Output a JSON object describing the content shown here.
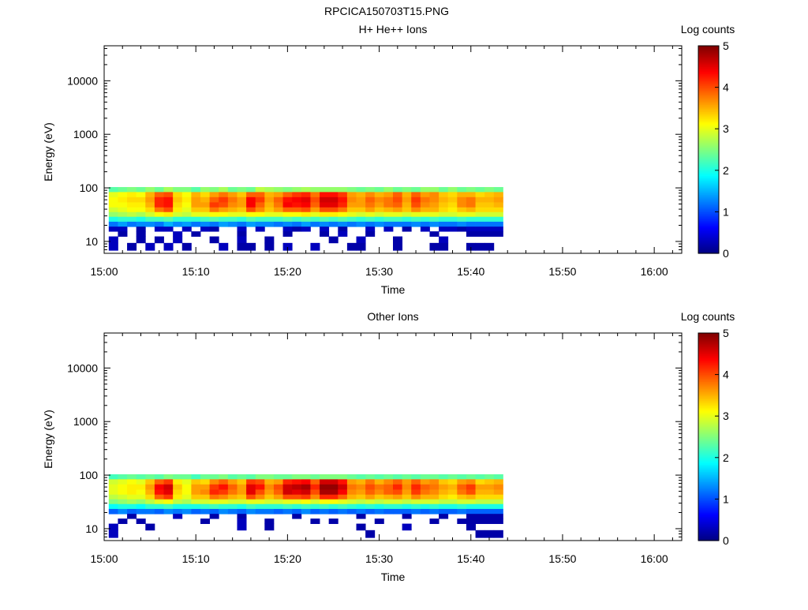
{
  "figure_title": "RPCICA150703T15.PNG",
  "colorbar_ticks": [
    "0",
    "1",
    "2",
    "3",
    "4",
    "5"
  ],
  "chart_data": [
    {
      "type": "heatmap",
      "title": "H+ He++ Ions",
      "xlabel": "Time",
      "ylabel": "Energy (eV)",
      "colorbar_label": "Log counts",
      "colorbar_range": [
        0,
        5
      ],
      "xlim": [
        "15:00",
        "16:03"
      ],
      "x_ticks": [
        "15:00",
        "15:10",
        "15:20",
        "15:30",
        "15:40",
        "15:50",
        "16:00"
      ],
      "ylim": [
        6,
        45000
      ],
      "y_scale": "log",
      "y_ticks": [
        {
          "value": 10,
          "label": "10"
        },
        {
          "value": 100,
          "label": "100"
        },
        {
          "value": 1000,
          "label": "1000"
        },
        {
          "value": 10000,
          "label": "10000"
        }
      ],
      "energy_bins_eV": [
        93,
        75,
        60,
        48,
        39,
        32,
        26,
        21,
        17,
        14,
        11,
        8
      ],
      "time_bins": [
        "15:01",
        "15:02",
        "15:03",
        "15:04",
        "15:05",
        "15:06",
        "15:07",
        "15:08",
        "15:09",
        "15:10",
        "15:11",
        "15:12",
        "15:13",
        "15:14",
        "15:15",
        "15:16",
        "15:17",
        "15:18",
        "15:19",
        "15:20",
        "15:21",
        "15:22",
        "15:23",
        "15:24",
        "15:25",
        "15:26",
        "15:27",
        "15:28",
        "15:29",
        "15:30",
        "15:31",
        "15:32",
        "15:33",
        "15:34",
        "15:35",
        "15:36",
        "15:37",
        "15:38",
        "15:39",
        "15:40",
        "15:41",
        "15:42",
        "15:43"
      ],
      "log_counts": [
        [
          2.3,
          2.4,
          2.5,
          2.4,
          2.6,
          2.4,
          2.7,
          2.5,
          2.5,
          2.3,
          2.6,
          2.5,
          2.7,
          2.4,
          2.5,
          2.4,
          2.8,
          2.7,
          2.6,
          2.5,
          2.6,
          2.7,
          2.6,
          2.6,
          2.6,
          2.6,
          2.5,
          2.4,
          2.5,
          2.4,
          2.6,
          2.4,
          2.5,
          2.4,
          2.6,
          2.6,
          2.4,
          2.6,
          2.4,
          2.5,
          2.4,
          2.5,
          2.4
        ],
        [
          3.0,
          3.1,
          3.2,
          3.1,
          3.5,
          3.9,
          4.0,
          3.3,
          3.1,
          3.5,
          3.3,
          3.6,
          3.8,
          3.6,
          3.4,
          3.9,
          3.9,
          3.5,
          3.6,
          3.9,
          4.1,
          4.2,
          3.8,
          4.3,
          4.3,
          4.1,
          3.6,
          3.5,
          3.7,
          3.5,
          3.6,
          3.9,
          3.5,
          3.9,
          3.6,
          3.7,
          3.4,
          3.3,
          3.5,
          3.5,
          3.3,
          3.4,
          3.5
        ],
        [
          3.1,
          3.2,
          3.3,
          3.3,
          3.6,
          4.2,
          4.3,
          3.4,
          3.2,
          3.6,
          3.5,
          3.9,
          4.1,
          3.8,
          3.6,
          4.4,
          4.1,
          3.6,
          3.9,
          4.3,
          4.4,
          4.5,
          4.0,
          4.6,
          4.6,
          4.3,
          3.7,
          3.6,
          3.9,
          3.7,
          3.8,
          4.0,
          3.6,
          4.1,
          3.8,
          3.7,
          3.5,
          3.4,
          3.7,
          3.8,
          3.5,
          3.5,
          3.6
        ],
        [
          3.1,
          3.1,
          3.2,
          3.2,
          3.5,
          4.2,
          4.3,
          3.3,
          3.1,
          3.6,
          3.6,
          4.1,
          4.0,
          3.7,
          3.6,
          4.4,
          3.9,
          3.5,
          3.8,
          4.4,
          4.3,
          4.4,
          3.9,
          4.5,
          4.5,
          4.2,
          3.6,
          3.6,
          3.8,
          3.6,
          3.8,
          3.9,
          3.5,
          4.0,
          3.7,
          3.6,
          3.4,
          3.3,
          3.7,
          3.8,
          3.4,
          3.4,
          3.5
        ],
        [
          2.9,
          3.0,
          3.1,
          3.1,
          3.3,
          3.8,
          4.0,
          3.2,
          3.0,
          3.4,
          3.4,
          3.8,
          3.6,
          3.5,
          3.4,
          4.0,
          3.7,
          3.4,
          3.6,
          3.9,
          3.9,
          4.0,
          3.6,
          4.0,
          4.0,
          3.8,
          3.4,
          3.4,
          3.6,
          3.4,
          3.5,
          3.6,
          3.4,
          3.7,
          3.5,
          3.5,
          3.3,
          3.2,
          3.4,
          3.5,
          3.3,
          3.3,
          3.3
        ],
        [
          2.6,
          2.7,
          2.8,
          2.7,
          2.9,
          3.1,
          3.2,
          2.9,
          2.8,
          3.0,
          3.0,
          3.1,
          3.1,
          3.0,
          3.0,
          3.1,
          3.1,
          3.0,
          3.0,
          3.1,
          3.1,
          3.2,
          3.0,
          3.2,
          3.2,
          3.1,
          3.0,
          2.9,
          3.0,
          2.9,
          3.0,
          3.0,
          2.9,
          3.0,
          3.0,
          3.0,
          2.9,
          2.9,
          3.0,
          3.0,
          2.9,
          2.9,
          2.9
        ],
        [
          2.0,
          2.1,
          2.1,
          2.0,
          2.2,
          2.2,
          2.3,
          2.1,
          2.1,
          2.1,
          2.2,
          2.3,
          2.2,
          2.2,
          2.1,
          2.3,
          2.2,
          2.2,
          2.2,
          2.3,
          2.2,
          2.3,
          2.2,
          2.3,
          2.2,
          2.3,
          2.2,
          2.1,
          2.2,
          2.1,
          2.2,
          2.2,
          2.1,
          2.2,
          2.1,
          2.2,
          2.1,
          2.1,
          2.2,
          2.1,
          2.1,
          2.1,
          2.1
        ],
        [
          1.2,
          1.4,
          1.2,
          1.3,
          1.3,
          1.2,
          1.5,
          1.3,
          1.4,
          1.2,
          1.3,
          1.2,
          1.4,
          1.3,
          1.2,
          1.4,
          1.3,
          1.3,
          1.2,
          1.3,
          1.2,
          1.4,
          1.2,
          1.3,
          1.2,
          1.3,
          1.2,
          1.3,
          1.2,
          1.3,
          1.2,
          1.2,
          1.2,
          1.3,
          1.2,
          1.3,
          1.2,
          1.2,
          1.3,
          1.2,
          1.2,
          1.2,
          1.2
        ],
        [
          0.3,
          0.3,
          null,
          0.2,
          null,
          0.3,
          0.3,
          null,
          0.3,
          null,
          0.3,
          0.2,
          null,
          null,
          0.3,
          null,
          0.3,
          null,
          null,
          0.3,
          0.2,
          0.3,
          null,
          0.3,
          null,
          0.2,
          null,
          null,
          0.3,
          null,
          0.3,
          null,
          0.2,
          null,
          0.3,
          null,
          0.3,
          0.3,
          0.2,
          0.3,
          0.3,
          0.3,
          0.3
        ],
        [
          null,
          0.2,
          null,
          0.2,
          null,
          null,
          null,
          0.3,
          null,
          0.2,
          null,
          null,
          null,
          null,
          0.2,
          null,
          null,
          null,
          null,
          0.2,
          null,
          null,
          null,
          0.2,
          null,
          0.3,
          null,
          null,
          0.2,
          null,
          null,
          null,
          null,
          null,
          null,
          0.2,
          null,
          null,
          null,
          0.2,
          0.2,
          0.2,
          0.2
        ],
        [
          0.3,
          null,
          null,
          0.2,
          null,
          0.2,
          null,
          0.3,
          null,
          null,
          null,
          0.2,
          null,
          null,
          0.3,
          null,
          null,
          0.2,
          null,
          null,
          null,
          null,
          null,
          null,
          0.2,
          null,
          null,
          0.3,
          null,
          null,
          null,
          0.2,
          null,
          null,
          null,
          null,
          0.3,
          null,
          null,
          null,
          null,
          null,
          null
        ],
        [
          0.3,
          null,
          0.2,
          null,
          0.3,
          null,
          0.3,
          null,
          0.2,
          null,
          null,
          null,
          0.3,
          null,
          0.2,
          0.2,
          null,
          0.2,
          null,
          0.3,
          null,
          null,
          0.3,
          null,
          null,
          null,
          0.2,
          0.2,
          null,
          null,
          null,
          0.2,
          null,
          null,
          null,
          0.2,
          0.2,
          null,
          null,
          0.2,
          0.2,
          0.2,
          null
        ]
      ]
    },
    {
      "type": "heatmap",
      "title": "Other Ions",
      "xlabel": "Time",
      "ylabel": "Energy (eV)",
      "colorbar_label": "Log counts",
      "colorbar_range": [
        0,
        5
      ],
      "xlim": [
        "15:00",
        "16:03"
      ],
      "x_ticks": [
        "15:00",
        "15:10",
        "15:20",
        "15:30",
        "15:40",
        "15:50",
        "16:00"
      ],
      "ylim": [
        6,
        45000
      ],
      "y_scale": "log",
      "y_ticks": [
        {
          "value": 10,
          "label": "10"
        },
        {
          "value": 100,
          "label": "100"
        },
        {
          "value": 1000,
          "label": "1000"
        },
        {
          "value": 10000,
          "label": "10000"
        }
      ],
      "energy_bins_eV": [
        93,
        75,
        60,
        48,
        39,
        32,
        26,
        21,
        17,
        14,
        11,
        8
      ],
      "time_bins": [
        "15:01",
        "15:02",
        "15:03",
        "15:04",
        "15:05",
        "15:06",
        "15:07",
        "15:08",
        "15:09",
        "15:10",
        "15:11",
        "15:12",
        "15:13",
        "15:14",
        "15:15",
        "15:16",
        "15:17",
        "15:18",
        "15:19",
        "15:20",
        "15:21",
        "15:22",
        "15:23",
        "15:24",
        "15:25",
        "15:26",
        "15:27",
        "15:28",
        "15:29",
        "15:30",
        "15:31",
        "15:32",
        "15:33",
        "15:34",
        "15:35",
        "15:36",
        "15:37",
        "15:38",
        "15:39",
        "15:40",
        "15:41",
        "15:42",
        "15:43"
      ],
      "log_counts": [
        [
          2.2,
          2.3,
          2.4,
          2.3,
          2.4,
          2.3,
          2.5,
          2.4,
          2.4,
          2.2,
          2.4,
          2.4,
          2.5,
          2.3,
          2.4,
          2.3,
          2.5,
          2.5,
          2.4,
          2.4,
          2.5,
          2.5,
          2.4,
          2.5,
          2.5,
          2.5,
          2.4,
          2.3,
          2.4,
          2.3,
          2.4,
          2.3,
          2.4,
          2.3,
          2.4,
          2.4,
          2.3,
          2.4,
          2.3,
          2.4,
          2.3,
          2.4,
          2.3
        ],
        [
          2.9,
          3.0,
          3.1,
          3.0,
          3.4,
          3.9,
          4.1,
          3.2,
          3.0,
          3.4,
          3.3,
          3.7,
          3.9,
          3.6,
          3.4,
          4.1,
          4.0,
          3.5,
          3.6,
          4.2,
          4.3,
          4.4,
          3.9,
          4.6,
          4.6,
          4.3,
          3.6,
          3.5,
          3.8,
          3.5,
          3.7,
          3.9,
          3.6,
          3.9,
          3.6,
          3.7,
          3.4,
          3.3,
          3.6,
          3.7,
          3.3,
          3.4,
          3.5
        ],
        [
          3.0,
          3.1,
          3.2,
          3.2,
          3.6,
          4.4,
          4.6,
          3.4,
          3.1,
          3.6,
          3.6,
          4.1,
          4.3,
          3.9,
          3.6,
          4.5,
          4.3,
          3.7,
          4.0,
          4.6,
          4.7,
          4.8,
          4.2,
          4.9,
          4.9,
          4.6,
          3.8,
          3.7,
          4.0,
          3.8,
          3.9,
          4.2,
          3.7,
          4.2,
          3.9,
          3.8,
          3.6,
          3.5,
          3.9,
          4.1,
          3.6,
          3.6,
          3.7
        ],
        [
          3.0,
          3.1,
          3.2,
          3.1,
          3.5,
          4.3,
          4.5,
          3.3,
          3.1,
          3.6,
          3.7,
          4.2,
          4.1,
          3.8,
          3.6,
          4.5,
          4.0,
          3.6,
          3.9,
          4.6,
          4.5,
          4.6,
          4.0,
          4.8,
          4.8,
          4.4,
          3.7,
          3.6,
          3.9,
          3.7,
          3.9,
          4.0,
          3.6,
          4.1,
          3.8,
          3.7,
          3.5,
          3.4,
          3.8,
          4.0,
          3.5,
          3.5,
          3.6
        ],
        [
          2.8,
          2.9,
          3.0,
          3.0,
          3.3,
          3.9,
          4.1,
          3.2,
          3.0,
          3.4,
          3.4,
          3.8,
          3.7,
          3.5,
          3.4,
          4.0,
          3.7,
          3.4,
          3.6,
          4.0,
          4.0,
          4.1,
          3.7,
          4.2,
          4.2,
          3.9,
          3.5,
          3.4,
          3.6,
          3.4,
          3.5,
          3.6,
          3.4,
          3.7,
          3.5,
          3.5,
          3.3,
          3.2,
          3.4,
          3.5,
          3.3,
          3.3,
          3.3
        ],
        [
          2.5,
          2.6,
          2.7,
          2.6,
          2.8,
          3.0,
          3.1,
          2.8,
          2.7,
          2.9,
          2.9,
          3.0,
          3.0,
          2.9,
          2.9,
          3.0,
          3.0,
          2.9,
          2.9,
          3.0,
          3.0,
          3.1,
          2.9,
          3.1,
          3.1,
          3.0,
          2.9,
          2.8,
          2.9,
          2.8,
          2.9,
          2.9,
          2.8,
          2.9,
          2.9,
          2.9,
          2.8,
          2.8,
          2.9,
          2.9,
          2.8,
          2.8,
          2.8
        ],
        [
          1.9,
          2.0,
          2.0,
          1.9,
          2.1,
          2.1,
          2.2,
          2.0,
          2.0,
          2.0,
          2.1,
          2.2,
          2.1,
          2.1,
          2.0,
          2.2,
          2.1,
          2.1,
          2.1,
          2.2,
          2.1,
          2.2,
          2.1,
          2.2,
          2.1,
          2.2,
          2.1,
          2.0,
          2.1,
          2.0,
          2.1,
          2.1,
          2.0,
          2.1,
          2.0,
          2.1,
          2.0,
          2.0,
          2.1,
          2.0,
          2.0,
          2.0,
          2.0
        ],
        [
          1.1,
          1.3,
          1.1,
          1.2,
          1.2,
          1.1,
          1.3,
          1.2,
          1.3,
          1.1,
          1.2,
          1.1,
          1.3,
          1.2,
          1.1,
          1.3,
          1.2,
          1.2,
          1.1,
          1.2,
          1.1,
          1.3,
          1.1,
          1.2,
          1.1,
          1.2,
          1.1,
          1.2,
          1.1,
          1.2,
          1.1,
          1.1,
          1.1,
          1.2,
          1.1,
          1.2,
          1.1,
          1.1,
          1.2,
          1.1,
          1.1,
          1.1,
          1.1
        ],
        [
          null,
          null,
          0.2,
          null,
          null,
          null,
          null,
          0.3,
          null,
          null,
          null,
          0.2,
          null,
          null,
          0.2,
          null,
          null,
          null,
          null,
          null,
          0.2,
          null,
          null,
          null,
          null,
          null,
          null,
          0.2,
          null,
          null,
          null,
          null,
          0.2,
          null,
          null,
          null,
          0.2,
          null,
          null,
          0.2,
          0.2,
          0.2,
          0.2
        ],
        [
          null,
          0.2,
          null,
          0.2,
          null,
          null,
          null,
          null,
          null,
          null,
          0.2,
          null,
          null,
          null,
          0.3,
          null,
          null,
          0.2,
          null,
          null,
          null,
          null,
          0.2,
          null,
          0.2,
          null,
          null,
          null,
          null,
          0.2,
          null,
          null,
          null,
          null,
          null,
          0.2,
          null,
          null,
          0.2,
          0.2,
          0.2,
          0.2,
          0.2
        ],
        [
          0.3,
          null,
          null,
          null,
          0.2,
          null,
          null,
          null,
          null,
          null,
          null,
          null,
          null,
          null,
          0.3,
          null,
          null,
          0.2,
          null,
          null,
          null,
          null,
          null,
          null,
          null,
          null,
          null,
          0.2,
          null,
          null,
          null,
          null,
          0.3,
          null,
          null,
          null,
          null,
          null,
          null,
          0.2,
          null,
          null,
          null
        ],
        [
          0.3,
          null,
          null,
          null,
          null,
          null,
          null,
          null,
          null,
          null,
          null,
          null,
          null,
          null,
          null,
          null,
          null,
          null,
          null,
          null,
          null,
          null,
          null,
          null,
          null,
          null,
          null,
          null,
          0.2,
          null,
          null,
          null,
          null,
          null,
          null,
          null,
          null,
          null,
          null,
          null,
          0.2,
          0.2,
          0.2
        ]
      ]
    }
  ]
}
